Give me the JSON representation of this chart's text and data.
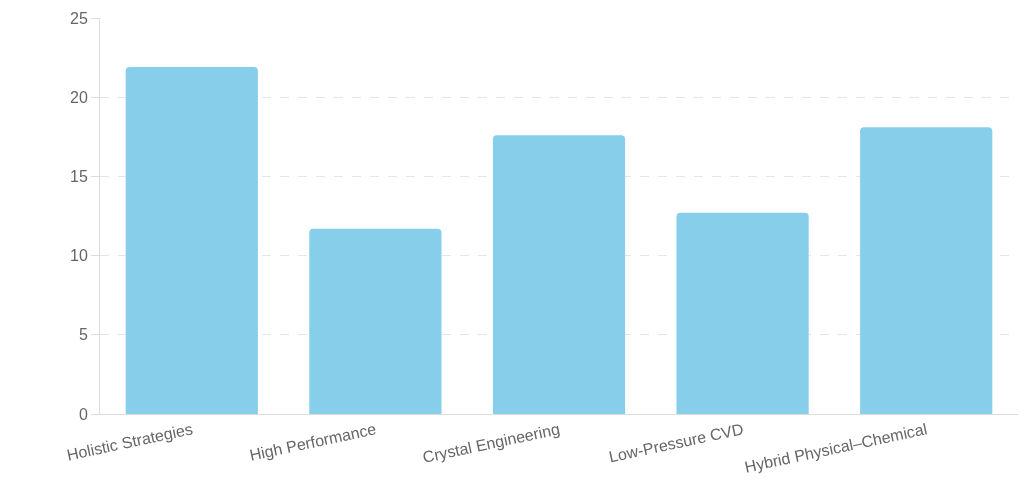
{
  "chart_data": {
    "type": "bar",
    "categories": [
      "Holistic Strategies",
      "High Performance",
      "Crystal Engineering",
      "Low-Pressure CVD",
      "Hybrid Physical–Chemical"
    ],
    "values": [
      21.9,
      11.7,
      17.6,
      12.7,
      18.1
    ],
    "color": "#87ceeb",
    "ylim": [
      0,
      25
    ],
    "yticks": [
      0,
      5,
      10,
      15,
      20,
      25
    ],
    "grid": "y"
  }
}
